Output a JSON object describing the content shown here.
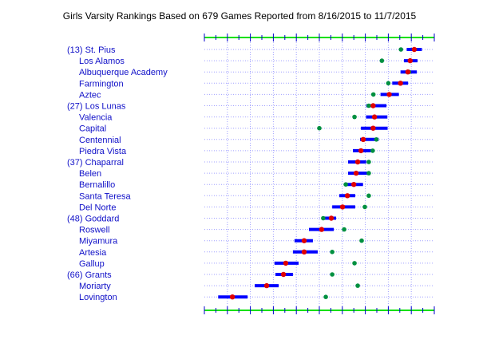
{
  "chart_data": {
    "type": "scatter",
    "title": "Girls Varsity Rankings Based on 679 Games Reported from 8/16/2015 to 11/7/2015",
    "xlim": [
      0,
      100
    ],
    "grid": true,
    "teams": [
      {
        "label": "(13) St. Pius",
        "indent": false,
        "rating": 91.3,
        "low": 88.0,
        "high": 94.6,
        "green": 85.5
      },
      {
        "label": "Los Alamos",
        "indent": true,
        "rating": 89.5,
        "low": 86.8,
        "high": 92.7,
        "green": 77.2
      },
      {
        "label": "Albuquerque Academy",
        "indent": true,
        "rating": 88.5,
        "low": 85.3,
        "high": 92.4,
        "green": 89.0
      },
      {
        "label": "Farmington",
        "indent": true,
        "rating": 85.3,
        "low": 81.7,
        "high": 88.6,
        "green": 80.0
      },
      {
        "label": "Aztec",
        "indent": true,
        "rating": 80.4,
        "low": 76.6,
        "high": 84.6,
        "green": 73.5
      },
      {
        "label": "(27) Los Lunas",
        "indent": false,
        "rating": 73.4,
        "low": 70.4,
        "high": 79.2,
        "green": 71.5
      },
      {
        "label": "Valencia",
        "indent": true,
        "rating": 74.0,
        "low": 70.3,
        "high": 79.6,
        "green": 65.3
      },
      {
        "label": "Capital",
        "indent": true,
        "rating": 73.4,
        "low": 68.1,
        "high": 79.7,
        "green": 50.0
      },
      {
        "label": "Centennial",
        "indent": true,
        "rating": 69.1,
        "low": 67.7,
        "high": 75.8,
        "green": 74.8
      },
      {
        "label": "Piedra Vista",
        "indent": true,
        "rating": 68.1,
        "low": 64.6,
        "high": 72.5,
        "green": 73.2
      },
      {
        "label": "(37) Chaparral",
        "indent": false,
        "rating": 66.7,
        "low": 62.5,
        "high": 70.4,
        "green": 71.5
      },
      {
        "label": "Belen",
        "indent": true,
        "rating": 66.0,
        "low": 62.5,
        "high": 70.8,
        "green": 71.5
      },
      {
        "label": "Bernalillo",
        "indent": true,
        "rating": 65.0,
        "low": 61.5,
        "high": 69.0,
        "green": 61.5
      },
      {
        "label": "Santa Teresa",
        "indent": true,
        "rating": 62.2,
        "low": 58.7,
        "high": 65.6,
        "green": 71.5
      },
      {
        "label": "Del Norte",
        "indent": true,
        "rating": 60.1,
        "low": 55.6,
        "high": 65.6,
        "green": 69.8
      },
      {
        "label": "(48) Goddard",
        "indent": false,
        "rating": 55.2,
        "low": 51.7,
        "high": 57.3,
        "green": 51.7
      },
      {
        "label": "Roswell",
        "indent": true,
        "rating": 51.0,
        "low": 45.5,
        "high": 56.3,
        "green": 60.8
      },
      {
        "label": "Miyamura",
        "indent": true,
        "rating": 43.4,
        "low": 39.2,
        "high": 47.2,
        "green": 68.4
      },
      {
        "label": "Artesia",
        "indent": true,
        "rating": 43.4,
        "low": 38.5,
        "high": 49.3,
        "green": 55.6
      },
      {
        "label": "Gallup",
        "indent": true,
        "rating": 35.4,
        "low": 30.5,
        "high": 41.0,
        "green": 65.3
      },
      {
        "label": "(66) Grants",
        "indent": false,
        "rating": 34.4,
        "low": 30.9,
        "high": 38.5,
        "green": 55.6
      },
      {
        "label": "Moriarty",
        "indent": true,
        "rating": 27.1,
        "low": 21.9,
        "high": 32.3,
        "green": 66.7
      },
      {
        "label": "Lovington",
        "indent": true,
        "rating": 12.2,
        "low": 6.0,
        "high": 18.8,
        "green": 52.8
      }
    ],
    "colors": {
      "axis": "#00e000",
      "tick": "#0000cc",
      "grid": "#a0a0ff",
      "bar": "#0000ff",
      "rating": "#e00000",
      "marker": "#009040",
      "label": "#1010c8"
    }
  }
}
